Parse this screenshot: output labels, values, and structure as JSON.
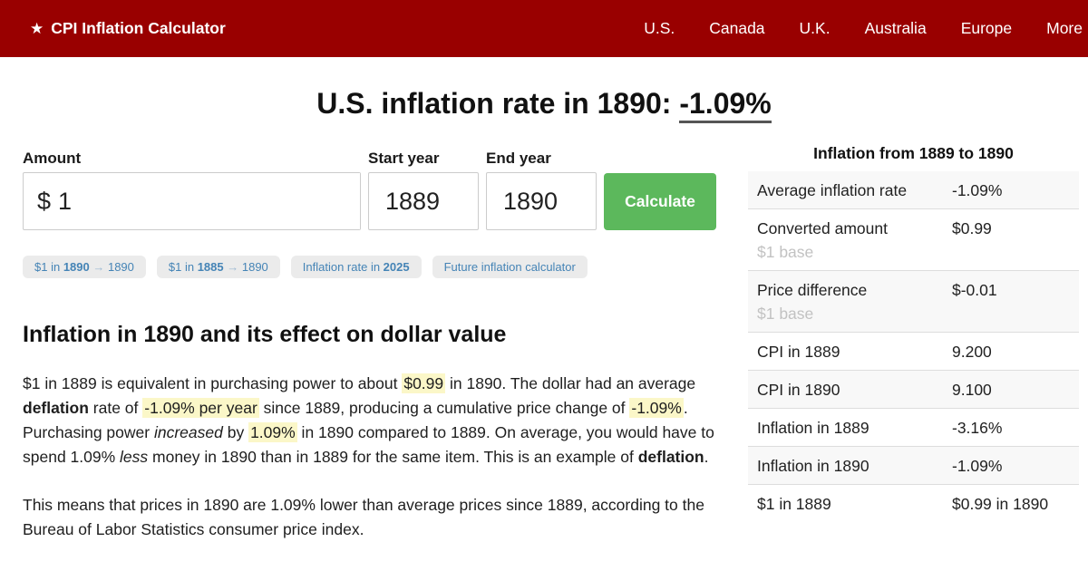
{
  "theme": {
    "nav_background": "#990000",
    "nav_text": "#ffffff",
    "button_background": "#5cb85c",
    "button_text": "#ffffff",
    "link_blue": "#4584b6",
    "highlight_yellow": "#fbf7c8",
    "stripe_gray": "#f8f8f8",
    "border_gray": "#dddddd",
    "muted_gray": "#c2c2c2"
  },
  "nav": {
    "brand_icon": "★",
    "brand": "CPI Inflation Calculator",
    "links": [
      "U.S.",
      "Canada",
      "U.K.",
      "Australia",
      "Europe",
      "More"
    ]
  },
  "title": {
    "prefix": "U.S. inflation rate in 1890: ",
    "rate": "-1.09%"
  },
  "form": {
    "amount_label": "Amount",
    "amount_prefix": "$",
    "amount_value": "1",
    "start_label": "Start year",
    "start_value": "1889",
    "end_label": "End year",
    "end_value": "1890",
    "submit_label": "Calculate"
  },
  "quick_links": [
    {
      "runs": [
        {
          "t": "$1 in ",
          "s": "p"
        },
        {
          "t": "1890",
          "s": "b"
        },
        {
          "t": " → ",
          "s": "m"
        },
        {
          "t": "1890",
          "s": "p"
        }
      ]
    },
    {
      "runs": [
        {
          "t": "$1 in ",
          "s": "p"
        },
        {
          "t": "1885",
          "s": "b"
        },
        {
          "t": " → ",
          "s": "m"
        },
        {
          "t": "1890",
          "s": "p"
        }
      ]
    },
    {
      "runs": [
        {
          "t": "Inflation rate in ",
          "s": "p"
        },
        {
          "t": "2025",
          "s": "b"
        }
      ]
    },
    {
      "runs": [
        {
          "t": "Future inflation calculator",
          "s": "p"
        }
      ]
    }
  ],
  "article": {
    "heading": "Inflation in 1890 and its effect on dollar value",
    "p1": [
      {
        "t": "$1 in 1889 is equivalent in purchasing power to about ",
        "s": "p"
      },
      {
        "t": "$0.99",
        "s": "h"
      },
      {
        "t": " in 1890. The dollar had an average ",
        "s": "p"
      },
      {
        "t": "deflation",
        "s": "b"
      },
      {
        "t": " rate of ",
        "s": "p"
      },
      {
        "t": "-1.09% per year",
        "s": "h"
      },
      {
        "t": " since 1889, producing a cumulative price change of ",
        "s": "p"
      },
      {
        "t": "-1.09%",
        "s": "h"
      },
      {
        "t": ". Purchasing power ",
        "s": "p"
      },
      {
        "t": "increased",
        "s": "i"
      },
      {
        "t": " by ",
        "s": "p"
      },
      {
        "t": "1.09%",
        "s": "h"
      },
      {
        "t": " in 1890 compared to 1889. On average, you would have to spend 1.09% ",
        "s": "p"
      },
      {
        "t": "less",
        "s": "i"
      },
      {
        "t": " money in 1890 than in 1889 for the same item. This is an example of ",
        "s": "p"
      },
      {
        "t": "deflation",
        "s": "b"
      },
      {
        "t": ".",
        "s": "p"
      }
    ],
    "p2": [
      {
        "t": "This means that prices in 1890 are 1.09% lower than average prices since 1889, according to the Bureau of Labor Statistics consumer price index.",
        "s": "p"
      }
    ]
  },
  "summary": {
    "title": "Inflation from 1889 to 1890",
    "rows": [
      {
        "label": "Average inflation rate",
        "sub": "",
        "value": "-1.09%"
      },
      {
        "label": "Converted amount",
        "sub": "$1 base",
        "value": "$0.99"
      },
      {
        "label": "Price difference",
        "sub": "$1 base",
        "value": "$-0.01"
      },
      {
        "label": "CPI in 1889",
        "sub": "",
        "value": "9.200"
      },
      {
        "label": "CPI in 1890",
        "sub": "",
        "value": "9.100"
      },
      {
        "label": "Inflation in 1889",
        "sub": "",
        "value": "-3.16%"
      },
      {
        "label": "Inflation in 1890",
        "sub": "",
        "value": "-1.09%"
      },
      {
        "label": "$1 in 1889",
        "sub": "",
        "value": "$0.99 in 1890"
      }
    ]
  }
}
